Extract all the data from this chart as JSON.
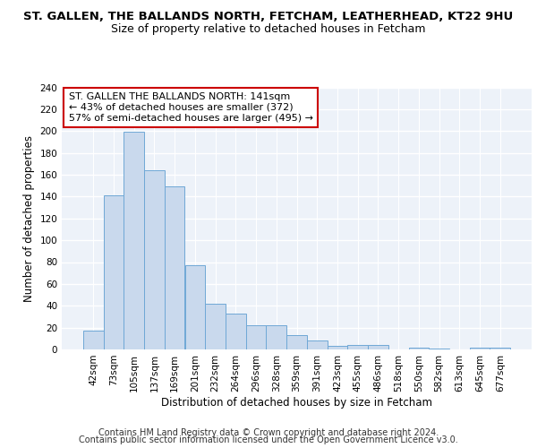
{
  "title": "ST. GALLEN, THE BALLANDS NORTH, FETCHAM, LEATHERHEAD, KT22 9HU",
  "subtitle": "Size of property relative to detached houses in Fetcham",
  "xlabel": "Distribution of detached houses by size in Fetcham",
  "ylabel": "Number of detached properties",
  "bar_color": "#c9d9ed",
  "bar_edge_color": "#6fa8d6",
  "categories": [
    "42sqm",
    "73sqm",
    "105sqm",
    "137sqm",
    "169sqm",
    "201sqm",
    "232sqm",
    "264sqm",
    "296sqm",
    "328sqm",
    "359sqm",
    "391sqm",
    "423sqm",
    "455sqm",
    "486sqm",
    "518sqm",
    "550sqm",
    "582sqm",
    "613sqm",
    "645sqm",
    "677sqm"
  ],
  "values": [
    17,
    141,
    199,
    164,
    149,
    77,
    42,
    33,
    22,
    22,
    13,
    8,
    3,
    4,
    4,
    0,
    2,
    1,
    0,
    2,
    2
  ],
  "ylim": [
    0,
    240
  ],
  "yticks": [
    0,
    20,
    40,
    60,
    80,
    100,
    120,
    140,
    160,
    180,
    200,
    220,
    240
  ],
  "annotation_text": "ST. GALLEN THE BALLANDS NORTH: 141sqm\n← 43% of detached houses are smaller (372)\n57% of semi-detached houses are larger (495) →",
  "annotation_box_color": "#ffffff",
  "annotation_box_edge_color": "#cc0000",
  "footnote_line1": "Contains HM Land Registry data © Crown copyright and database right 2024.",
  "footnote_line2": "Contains public sector information licensed under the Open Government Licence v3.0.",
  "background_color": "#edf2f9",
  "grid_color": "#ffffff",
  "title_fontsize": 9.5,
  "subtitle_fontsize": 9,
  "axis_label_fontsize": 8.5,
  "tick_fontsize": 7.5,
  "annotation_fontsize": 8,
  "footnote_fontsize": 7
}
